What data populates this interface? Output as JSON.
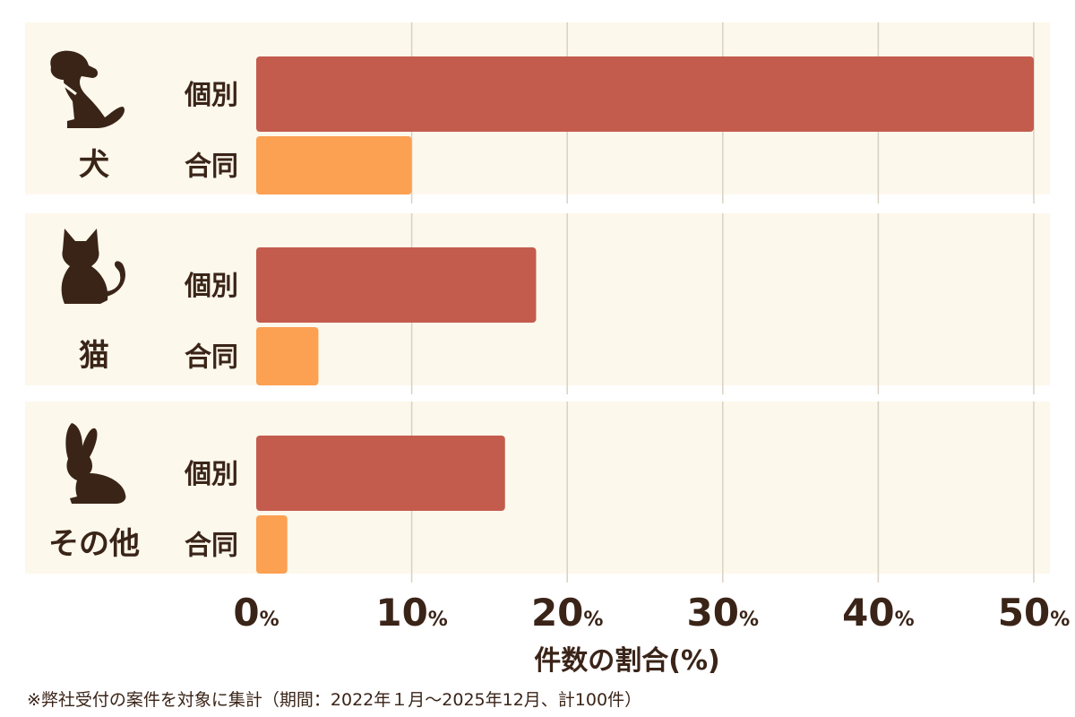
{
  "chart_data": {
    "type": "bar",
    "orientation": "horizontal",
    "groups": [
      {
        "label": "犬",
        "icon": "dog-icon",
        "bars": [
          {
            "label": "個別",
            "value": 50
          },
          {
            "label": "合同",
            "value": 10
          }
        ]
      },
      {
        "label": "猫",
        "icon": "cat-icon",
        "bars": [
          {
            "label": "個別",
            "value": 18
          },
          {
            "label": "合同",
            "value": 4
          }
        ]
      },
      {
        "label": "その他",
        "icon": "rabbit-icon",
        "bars": [
          {
            "label": "個別",
            "value": 16
          },
          {
            "label": "合同",
            "value": 2
          }
        ]
      }
    ],
    "xlim": [
      0,
      50
    ],
    "xticks": [
      0,
      10,
      20,
      30,
      40,
      50
    ],
    "tick_unit": "%",
    "xlabel": "件数の割合(%)",
    "grid": true,
    "colors": {
      "個別": "#c45c4e",
      "合同": "#fca052",
      "group_background": "#fdf8ec",
      "text": "#3a2418"
    }
  },
  "footnote": "※弊社受付の案件を対象に集計（期間：2022年１月～2025年12月、計100件）"
}
